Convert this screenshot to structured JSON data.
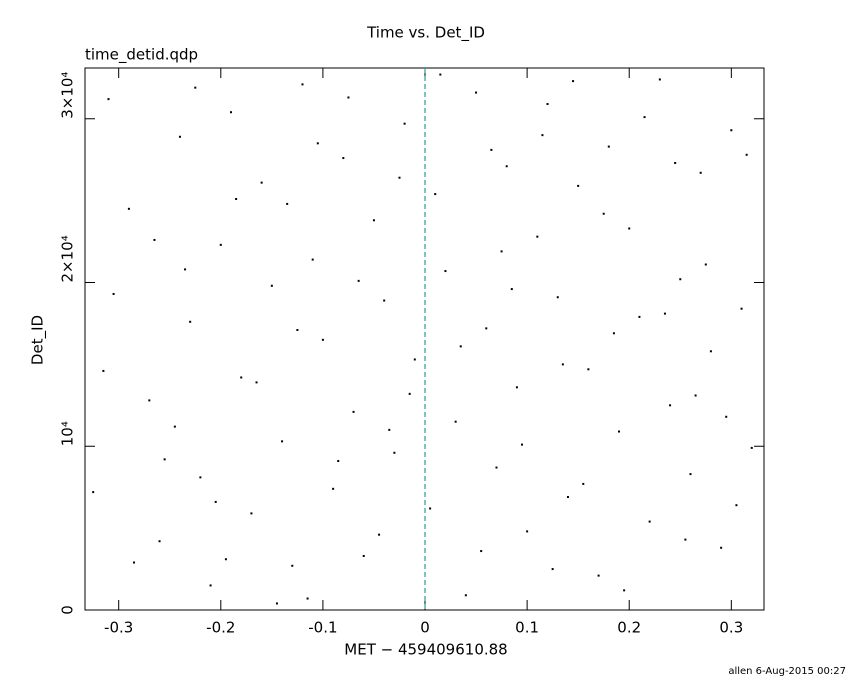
{
  "chart_data": {
    "type": "scatter",
    "title": "Time vs. Det_ID",
    "subtitle": "time_detid.qdp",
    "x_label": "MET − 459409610.88",
    "y_label": "Det_ID",
    "footer": "allen  6-Aug-2015 00:27",
    "color": "#000000",
    "xlim": [
      -0.333,
      0.332
    ],
    "ylim": [
      0,
      33100
    ],
    "xticks": [
      -0.3,
      -0.2,
      -0.1,
      0,
      0.1,
      0.2,
      0.3
    ],
    "yticks": [
      0,
      {
        "value": 10000,
        "label": "10⁴"
      },
      {
        "value": 20000,
        "label": "2×10⁴"
      },
      {
        "value": 30000,
        "label": "3×10⁴"
      }
    ],
    "reference_line": {
      "x": 0,
      "color": "#2a9a9a"
    },
    "x": [
      -0.31,
      -0.29,
      -0.27,
      -0.26,
      -0.24,
      -0.23,
      -0.22,
      -0.21,
      -0.2,
      -0.19,
      -0.18,
      -0.17,
      -0.16,
      -0.15,
      -0.14,
      -0.13,
      -0.12,
      -0.11,
      -0.1,
      -0.09,
      -0.08,
      -0.07,
      -0.06,
      -0.05,
      -0.04,
      -0.03,
      -0.02,
      -0.01,
      0.005,
      0.01,
      0.02,
      0.03,
      0.04,
      0.05,
      0.06,
      0.07,
      0.08,
      0.09,
      0.1,
      0.11,
      0.12,
      0.13,
      0.14,
      0.15,
      0.16,
      0.17,
      0.18,
      0.19,
      0.2,
      0.21,
      0.22,
      0.23,
      0.24,
      0.25,
      0.26,
      0.27,
      0.28,
      0.29,
      0.3,
      0.31,
      0.32,
      -0.325,
      -0.305,
      -0.285,
      -0.265,
      -0.245,
      -0.225,
      -0.205,
      -0.185,
      -0.165,
      -0.145,
      -0.125,
      -0.105,
      -0.085,
      -0.065,
      -0.045,
      -0.025,
      -0.015,
      0.015,
      0.035,
      0.055,
      0.075,
      0.095,
      0.115,
      0.135,
      0.155,
      0.175,
      0.195,
      0.215,
      0.235,
      0.255,
      0.275,
      0.295,
      0.315,
      -0.315,
      -0.255,
      -0.195,
      -0.135,
      -0.075,
      0.065,
      0.125,
      0.185,
      0.245,
      0.305,
      -0.235,
      -0.115,
      -0.035,
      0.085,
      0.145,
      0.265
    ],
    "values": [
      31200,
      24500,
      12800,
      4200,
      28900,
      17600,
      8100,
      1500,
      22300,
      30400,
      14200,
      5900,
      26100,
      19800,
      10300,
      2700,
      32100,
      21400,
      16500,
      7400,
      27600,
      12100,
      3300,
      23800,
      18900,
      9600,
      29700,
      15300,
      6200,
      25400,
      20700,
      11500,
      900,
      31600,
      17200,
      8700,
      27100,
      13600,
      4800,
      22800,
      30900,
      19100,
      6900,
      25900,
      14700,
      2100,
      28300,
      10900,
      23300,
      17900,
      5400,
      32400,
      12500,
      20200,
      8300,
      26700,
      15800,
      3800,
      29300,
      18400,
      9900,
      7200,
      19300,
      2900,
      22600,
      11200,
      31900,
      6600,
      25100,
      13900,
      400,
      17100,
      28500,
      9100,
      20100,
      4600,
      26400,
      13200,
      32700,
      16100,
      3600,
      21900,
      10100,
      29000,
      15000,
      7700,
      24200,
      1200,
      30100,
      18100,
      4300,
      21100,
      11800,
      27800,
      14600,
      9200,
      3100,
      24800,
      31300,
      28100,
      2500,
      16900,
      27300,
      6400,
      20800,
      700,
      11000,
      19600,
      32300,
      13100
    ]
  }
}
